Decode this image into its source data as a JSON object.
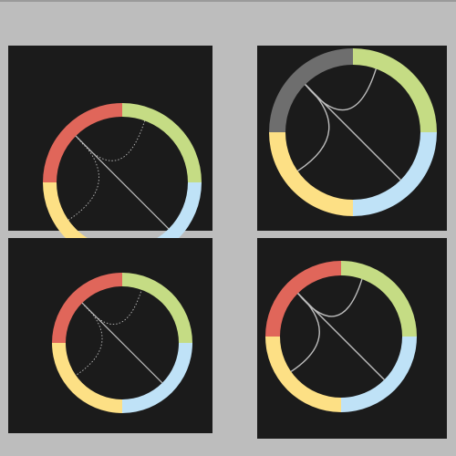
{
  "colors": {
    "background": "#bdbdbd",
    "panel": "#1b1b1b",
    "red": "#e0665a",
    "green": "#c5dc84",
    "blue": "#bfe2f7",
    "yellow": "#fde085",
    "gray": "#6e6e6e",
    "line": "#bdbdbd"
  },
  "wheels": [
    {
      "name": "wheel-top-left",
      "segments": [
        "red",
        "green",
        "blue",
        "yellow"
      ],
      "active": false
    },
    {
      "name": "wheel-top-right",
      "segments": [
        "gray",
        "green",
        "blue",
        "yellow"
      ],
      "active": true
    },
    {
      "name": "wheel-bottom-left",
      "segments": [
        "red",
        "green",
        "blue",
        "yellow"
      ],
      "active": false
    },
    {
      "name": "wheel-bottom-right",
      "segments": [
        "red",
        "green",
        "blue",
        "yellow"
      ],
      "active": true
    }
  ]
}
